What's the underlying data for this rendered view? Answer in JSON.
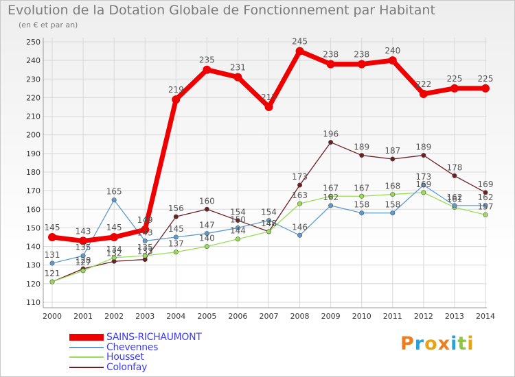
{
  "title": "Evolution de la Dotation Globale de Fonctionnement par Habitant",
  "subtitle": "(en € et par an)",
  "brand": {
    "text": "Proxiti",
    "colors": [
      "#ee7d1e",
      "#2f9fd8",
      "#e8a317",
      "#ee7d1e",
      "#2f9fd8",
      "#8cc63f",
      "#e8a317"
    ]
  },
  "chart_data": {
    "type": "line",
    "title": "Evolution de la Dotation Globale de Fonctionnement par Habitant",
    "ylabel": "(en € et par an)",
    "xlabel": "",
    "ylim": [
      110,
      250
    ],
    "yticks": [
      110,
      120,
      130,
      140,
      150,
      160,
      170,
      180,
      190,
      200,
      210,
      220,
      230,
      240,
      250
    ],
    "x": [
      "2000",
      "2001",
      "2002",
      "2003",
      "2004",
      "2005",
      "2006",
      "2007",
      "2008",
      "2009",
      "2010",
      "2011",
      "2012",
      "2013",
      "2014"
    ],
    "grid": true,
    "legend": "bottom-left",
    "series": [
      {
        "name": "Colonfay",
        "color": "#6b1e25",
        "values": [
          121,
          128,
          132,
          133,
          156,
          160,
          154,
          148,
          173,
          196,
          189,
          187,
          189,
          178,
          169
        ]
      },
      {
        "name": "Housset",
        "color": "#99dd55",
        "values": [
          121,
          127,
          134,
          135,
          137,
          140,
          144,
          148,
          163,
          167,
          167,
          168,
          169,
          161,
          157
        ]
      },
      {
        "name": "Chevennes",
        "color": "#5e9ccd",
        "values": [
          131,
          135,
          165,
          143,
          145,
          147,
          150,
          154,
          146,
          162,
          158,
          158,
          173,
          162,
          162
        ]
      },
      {
        "name": "SAINS-RICHAUMONT",
        "color": "#ee0000",
        "values": [
          145,
          143,
          145,
          149,
          219,
          235,
          231,
          215,
          245,
          238,
          238,
          240,
          222,
          225,
          225
        ]
      }
    ]
  },
  "legend_items": [
    {
      "name": "SAINS-RICHAUMONT",
      "color": "#ee0000"
    },
    {
      "name": "Chevennes",
      "color": "#5e9ccd"
    },
    {
      "name": "Housset",
      "color": "#99dd55"
    },
    {
      "name": "Colonfay",
      "color": "#6b1e25"
    }
  ]
}
